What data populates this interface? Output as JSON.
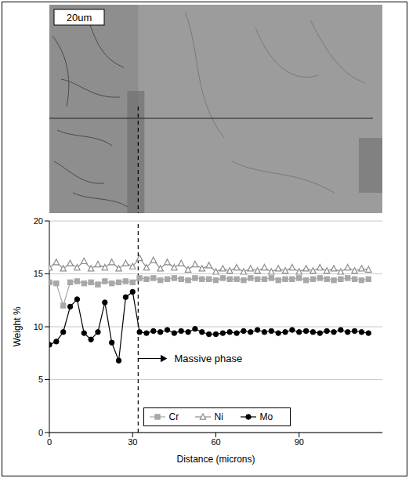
{
  "chart_data": {
    "type": "line",
    "x_label": "Distance (microns)",
    "y_label": "Weight %",
    "x": [
      0,
      2.5,
      5,
      7.5,
      10,
      12.5,
      15,
      17.5,
      20,
      22.5,
      25,
      27.5,
      30,
      32.5,
      35,
      37.5,
      40,
      42.5,
      45,
      47.5,
      50,
      52.5,
      55,
      57.5,
      60,
      62.5,
      65,
      67.5,
      70,
      72.5,
      75,
      77.5,
      80,
      82.5,
      85,
      87.5,
      90,
      92.5,
      95,
      97.5,
      100,
      102.5,
      105,
      107.5,
      110,
      112.5,
      115
    ],
    "series": [
      {
        "name": "Cr",
        "color": "#a8a8a8",
        "marker": "square",
        "values": [
          14.2,
          14.1,
          12.0,
          14.2,
          14.3,
          14.1,
          14.2,
          14.0,
          14.3,
          14.1,
          14.2,
          14.3,
          14.2,
          14.6,
          14.5,
          14.6,
          14.4,
          14.5,
          14.6,
          14.5,
          14.4,
          14.6,
          14.5,
          14.5,
          14.4,
          14.6,
          14.5,
          14.5,
          14.4,
          14.6,
          14.5,
          14.5,
          14.6,
          14.4,
          14.5,
          14.5,
          14.6,
          14.4,
          14.5,
          14.6,
          14.5,
          14.4,
          14.5,
          14.6,
          14.5,
          14.4,
          14.5
        ]
      },
      {
        "name": "Ni",
        "color": "#8c8c8c",
        "marker": "triangle",
        "values": [
          15.6,
          16.1,
          15.5,
          16.0,
          15.6,
          16.2,
          15.5,
          15.9,
          15.6,
          16.1,
          15.5,
          16.0,
          15.7,
          16.5,
          15.6,
          16.3,
          15.5,
          16.1,
          15.6,
          16.0,
          15.4,
          15.9,
          15.5,
          15.8,
          15.2,
          15.5,
          15.3,
          15.6,
          15.2,
          15.5,
          15.3,
          15.6,
          15.2,
          15.5,
          15.3,
          15.6,
          15.2,
          15.5,
          15.3,
          15.6,
          15.3,
          15.5,
          15.2,
          15.6,
          15.3,
          15.5,
          15.4
        ]
      },
      {
        "name": "Mo",
        "color": "#000000",
        "marker": "circle",
        "values": [
          8.3,
          8.6,
          9.5,
          11.9,
          12.6,
          9.4,
          8.8,
          9.5,
          12.3,
          8.5,
          6.8,
          12.8,
          13.3,
          9.5,
          9.4,
          9.6,
          9.5,
          9.7,
          9.4,
          9.6,
          9.5,
          9.8,
          9.5,
          9.3,
          9.3,
          9.4,
          9.5,
          9.4,
          9.6,
          9.5,
          9.7,
          9.5,
          9.6,
          9.4,
          9.5,
          9.7,
          9.5,
          9.6,
          9.5,
          9.4,
          9.6,
          9.5,
          9.7,
          9.5,
          9.6,
          9.5,
          9.4
        ]
      }
    ],
    "xlim": [
      0,
      120
    ],
    "xticks": [
      0,
      30,
      60,
      90
    ],
    "ylim": [
      0,
      20
    ],
    "yticks": [
      0,
      5,
      10,
      15,
      20
    ],
    "grid": true,
    "legend": "bottom",
    "annotations": [
      {
        "text": "Massive phase",
        "x": 32
      }
    ]
  },
  "micrograph": {
    "scale_bar": "20um"
  }
}
